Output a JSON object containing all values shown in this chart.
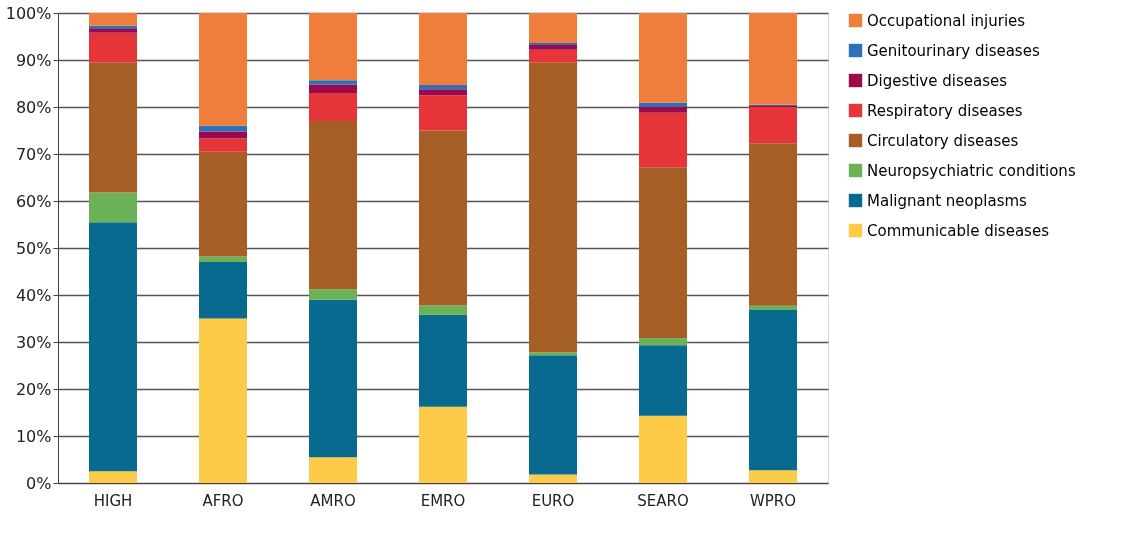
{
  "chart_data": {
    "type": "bar",
    "stacked": true,
    "categories": [
      "HIGH",
      "AFRO",
      "AMRO",
      "EMRO",
      "EURO",
      "SEARO",
      "WPRO"
    ],
    "series": [
      {
        "name": "Communicable diseases",
        "color": "#fdcb47",
        "values": [
          2.5,
          35,
          5.5,
          16.2,
          1.8,
          14.3,
          2.7
        ]
      },
      {
        "name": "Malignant neoplasms",
        "color": "#076a8e",
        "values": [
          53,
          12,
          33.5,
          19.6,
          25.4,
          15,
          34.1
        ]
      },
      {
        "name": "Neuropsychiatric conditions",
        "color": "#6ab255",
        "values": [
          6.3,
          1.2,
          2.2,
          2,
          0.6,
          1.5,
          0.9
        ]
      },
      {
        "name": "Circulatory diseases",
        "color": "#a65e27",
        "values": [
          27.7,
          22.3,
          35.8,
          37.2,
          61.7,
          36.4,
          34.6
        ]
      },
      {
        "name": "Respiratory diseases",
        "color": "#e63538",
        "values": [
          6.3,
          2.8,
          6,
          7.5,
          2.7,
          11.6,
          7.7
        ]
      },
      {
        "name": "Digestive diseases",
        "color": "#9b0a4c",
        "values": [
          0.8,
          1.5,
          1.8,
          1.3,
          1,
          1.2,
          0.2
        ]
      },
      {
        "name": "Genitourinary diseases",
        "color": "#2e70b5",
        "values": [
          0.7,
          1.2,
          0.9,
          0.9,
          0.4,
          0.9,
          0.3
        ]
      },
      {
        "name": "Occupational injuries",
        "color": "#ef7d3c",
        "values": [
          2.7,
          24,
          14.3,
          15.3,
          6.4,
          19.1,
          19.5
        ]
      }
    ],
    "ylim": [
      0,
      100
    ],
    "yticks": [
      {
        "value": 0,
        "label": "0%"
      },
      {
        "value": 10,
        "label": "10%"
      },
      {
        "value": 20,
        "label": "20%"
      },
      {
        "value": 30,
        "label": "30%"
      },
      {
        "value": 40,
        "label": "40%"
      },
      {
        "value": 50,
        "label": "50%"
      },
      {
        "value": 60,
        "label": "60%"
      },
      {
        "value": 70,
        "label": "70%"
      },
      {
        "value": 80,
        "label": "80%"
      },
      {
        "value": 90,
        "label": "90%"
      },
      {
        "value": 100,
        "label": "100%"
      }
    ],
    "grid": "y",
    "legend": "right"
  }
}
